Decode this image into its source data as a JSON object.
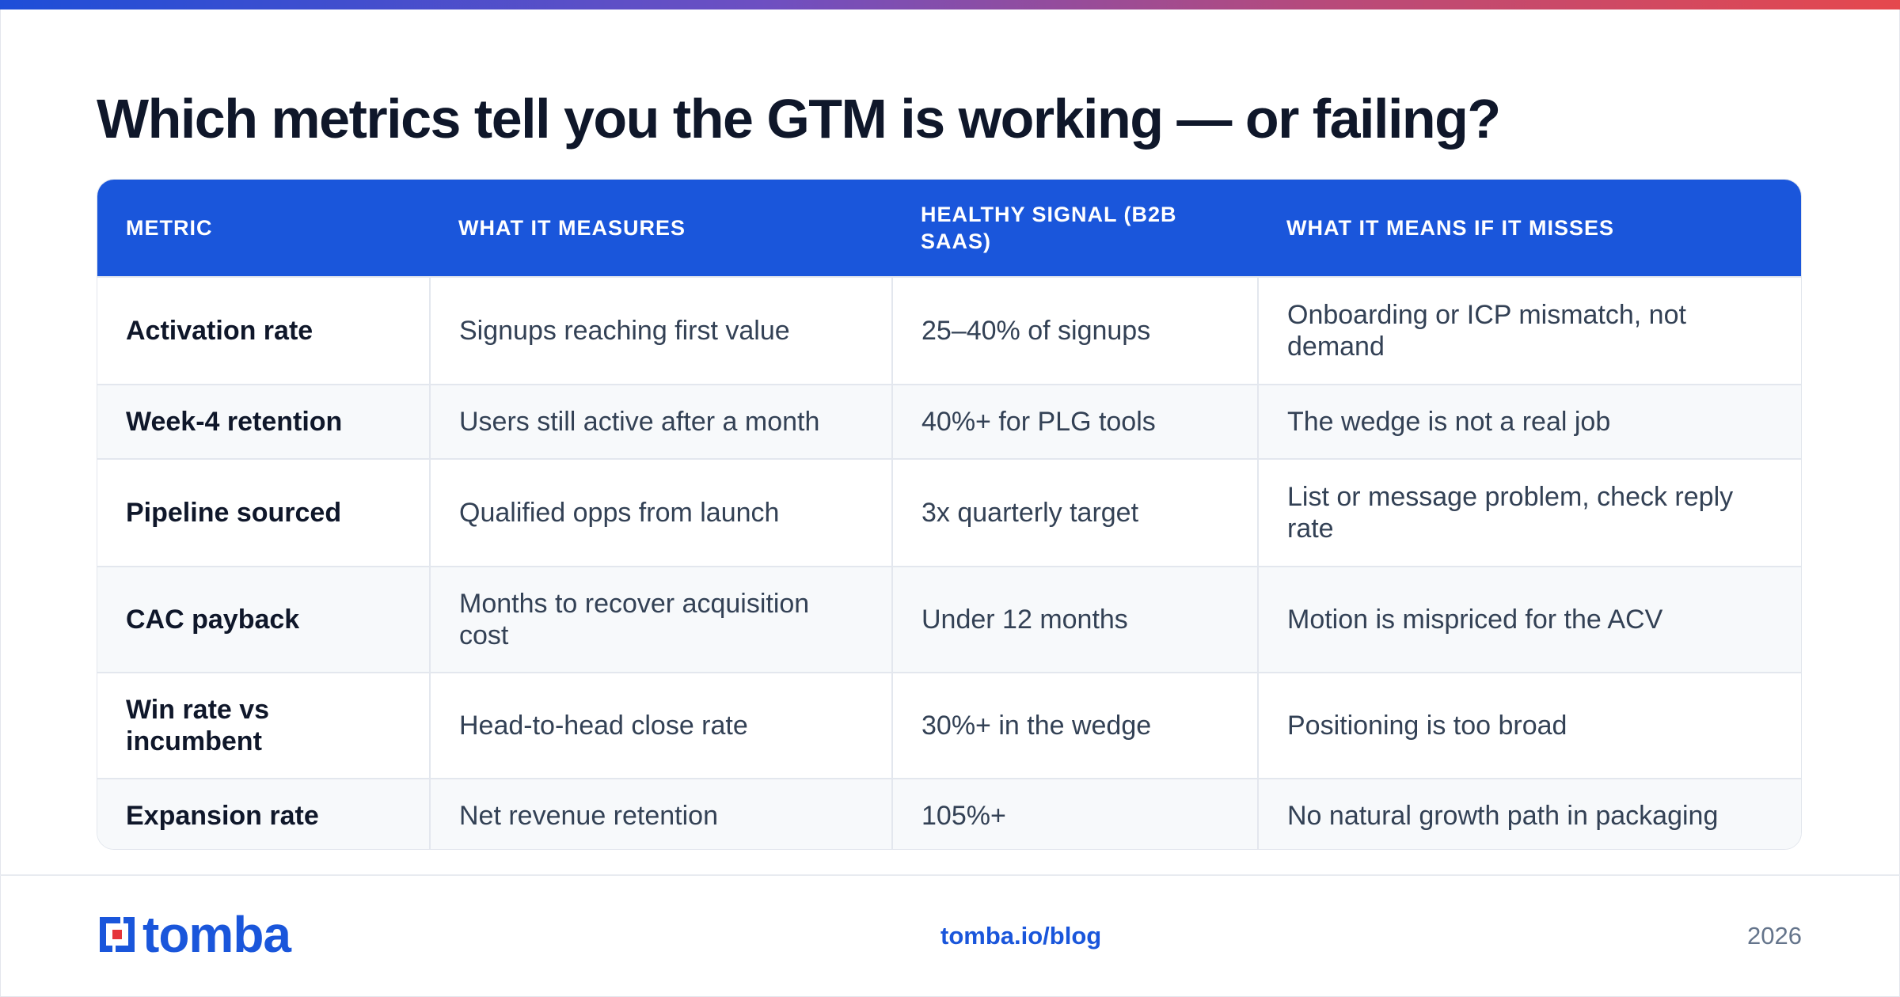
{
  "title": "Which metrics tell you the GTM is working — or failing?",
  "table": {
    "headers": [
      "Metric",
      "What it measures",
      "Healthy signal (B2B SaaS)",
      "What it means if it misses"
    ],
    "rows": [
      [
        "Activation rate",
        "Signups reaching first value",
        "25–40% of signups",
        "Onboarding or ICP mismatch, not demand"
      ],
      [
        "Week-4 retention",
        "Users still active after a month",
        "40%+ for PLG tools",
        "The wedge is not a real job"
      ],
      [
        "Pipeline sourced",
        "Qualified opps from launch",
        "3x quarterly target",
        "List or message problem, check reply rate"
      ],
      [
        "CAC payback",
        "Months to recover acquisition cost",
        "Under 12 months",
        "Motion is mispriced for the ACV"
      ],
      [
        "Win rate vs incumbent",
        "Head-to-head close rate",
        "30%+ in the wedge",
        "Positioning is too broad"
      ],
      [
        "Expansion rate",
        "Net revenue retention",
        "105%+",
        "No natural growth path in packaging"
      ]
    ]
  },
  "footer": {
    "logo_text": "tomba",
    "link": "tomba.io/blog",
    "year": "2026"
  },
  "colors": {
    "brand_blue": "#1a56db",
    "logo_red": "#e5343a"
  }
}
